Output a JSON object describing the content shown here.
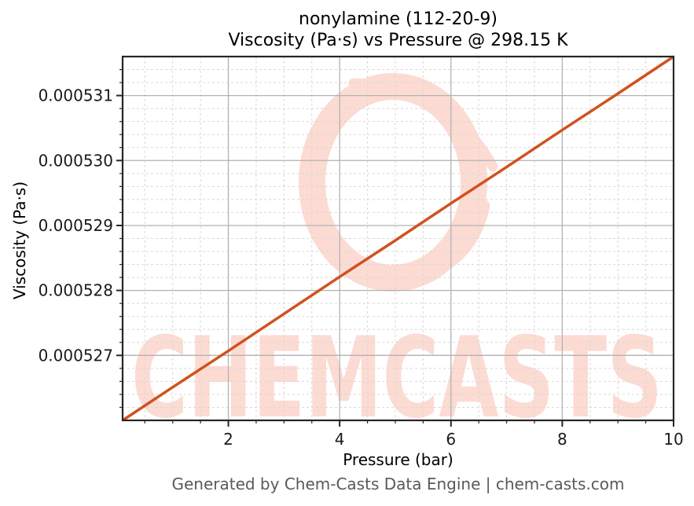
{
  "chart_data": {
    "type": "line",
    "title": "nonylamine (112-20-9)",
    "subtitle": "Viscosity (Pa·s) vs Pressure @ 298.15 K",
    "xlabel": "Pressure (bar)",
    "ylabel": "Viscosity (Pa·s)",
    "x": [
      0.1,
      1,
      2,
      3,
      4,
      5,
      6,
      7,
      8,
      9,
      10
    ],
    "y": [
      0.000526,
      0.00052651,
      0.00052707,
      0.00052764,
      0.00052821,
      0.00052877,
      0.00052934,
      0.0005299,
      0.00053047,
      0.00053103,
      0.0005316
    ],
    "xlim": [
      0.1,
      10
    ],
    "ylim": [
      0.000526,
      0.0005316
    ],
    "xticks": [
      2,
      4,
      6,
      8,
      10
    ],
    "xtick_labels": [
      "2",
      "4",
      "6",
      "8",
      "10"
    ],
    "yticks": [
      0.000527,
      0.000528,
      0.000529,
      0.00053,
      0.000531
    ],
    "ytick_labels": [
      "0.000527",
      "0.000528",
      "0.000529",
      "0.000530",
      "0.000531"
    ],
    "minor_x_step": 0.5,
    "minor_y_step": 2e-07,
    "grid": {
      "major": "solid",
      "minor": "dashed",
      "on": true
    },
    "legend": null,
    "line_color": "#d0521e",
    "colors": {
      "major_grid": "#b2b2b2",
      "minor_grid": "#d8d8d8",
      "spine": "#262626",
      "tick_label": "#1a1a1a"
    }
  },
  "watermark": {
    "text": "CHEMCASTS",
    "color": "#fcdbd3"
  },
  "footer": {
    "text": "Generated by Chem-Casts Data Engine | chem-casts.com"
  }
}
